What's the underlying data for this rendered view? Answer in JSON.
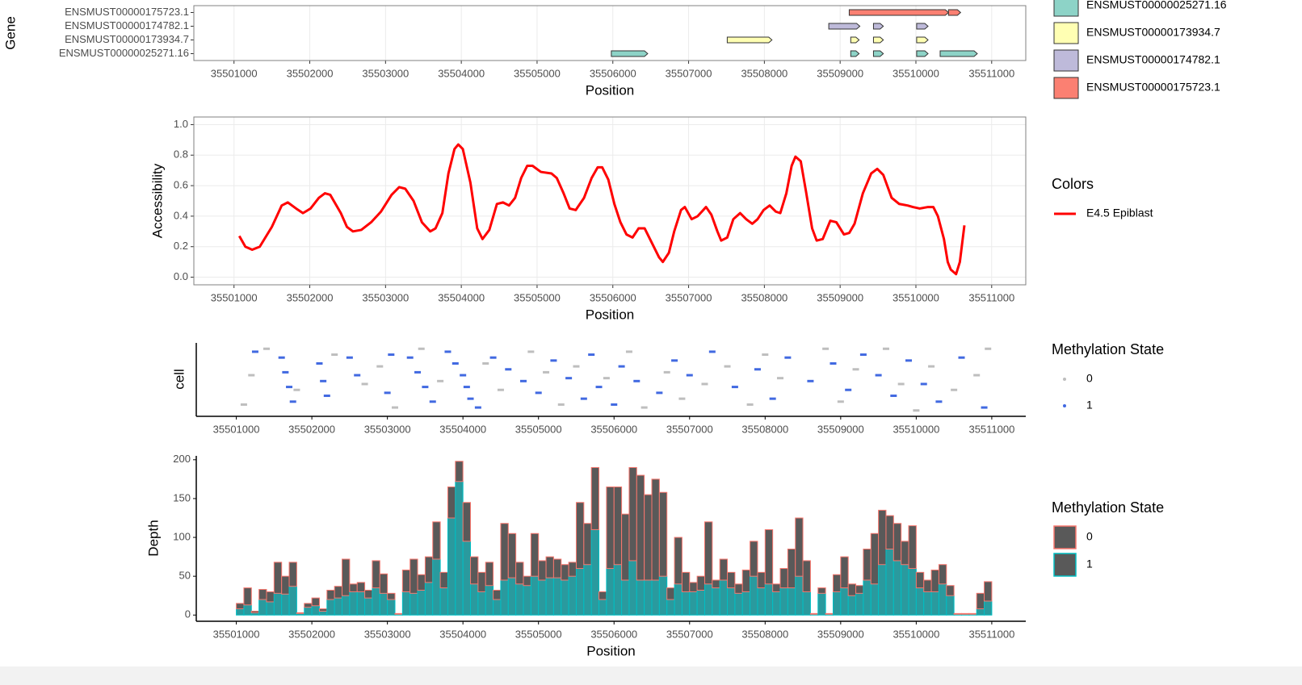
{
  "chart_data": [
    {
      "type": "gantt",
      "xlabel": "Position",
      "ylabel": "Gene",
      "categories": [
        "ENSMUST00000175723.1",
        "ENSMUST00000174782.1",
        "ENSMUST00000173934.7",
        "ENSMUST00000025271.16"
      ],
      "series": [
        {
          "name": "ENSMUST00000025271.16",
          "color": "#8dd3c7",
          "segments": [
            [
              35505980,
              35506460
            ],
            [
              35509140,
              35509250
            ],
            [
              35509440,
              35509570
            ],
            [
              35510010,
              35510160
            ],
            [
              35510320,
              35510810
            ]
          ]
        },
        {
          "name": "ENSMUST00000173934.7",
          "color": "#ffffb3",
          "segments": [
            [
              35507510,
              35508100
            ],
            [
              35509140,
              35509250
            ],
            [
              35509440,
              35509570
            ],
            [
              35510010,
              35510160
            ]
          ]
        },
        {
          "name": "ENSMUST00000174782.1",
          "color": "#bebada",
          "segments": [
            [
              35508850,
              35509260
            ],
            [
              35509440,
              35509570
            ],
            [
              35510010,
              35510160
            ]
          ]
        },
        {
          "name": "ENSMUST00000175723.1",
          "color": "#fb8072",
          "segments": [
            [
              35509120,
              35510430
            ],
            [
              35510430,
              35510590
            ]
          ]
        }
      ],
      "xlim": [
        35500470,
        35511450
      ],
      "xticks": [
        35501000,
        35502000,
        35503000,
        35504000,
        35505000,
        35506000,
        35507000,
        35508000,
        35509000,
        35510000,
        35511000
      ],
      "grid": true
    },
    {
      "type": "line",
      "xlabel": "Position",
      "ylabel": "Accessibility",
      "legend_title": "Colors",
      "x": [
        35501070,
        35501150,
        35501240,
        35501340,
        35501500,
        35501630,
        35501710,
        35501820,
        35501910,
        35502010,
        35502120,
        35502200,
        35502270,
        35502410,
        35502490,
        35502570,
        35502680,
        35502810,
        35502940,
        35503080,
        35503180,
        35503260,
        35503370,
        35503480,
        35503590,
        35503660,
        35503750,
        35503830,
        35503910,
        35503960,
        35504020,
        35504120,
        35504210,
        35504280,
        35504370,
        35504470,
        35504550,
        35504630,
        35504710,
        35504790,
        35504870,
        35504940,
        35505050,
        35505190,
        35505260,
        35505350,
        35505430,
        35505510,
        35505620,
        35505720,
        35505800,
        35505860,
        35505940,
        35506020,
        35506100,
        35506180,
        35506260,
        35506340,
        35506420,
        35506520,
        35506610,
        35506660,
        35506740,
        35506810,
        35506900,
        35506950,
        35507040,
        35507120,
        35507230,
        35507300,
        35507380,
        35507430,
        35507510,
        35507590,
        35507680,
        35507760,
        35507840,
        35507910,
        35507990,
        35508070,
        35508150,
        35508210,
        35508290,
        35508360,
        35508410,
        35508480,
        35508550,
        35508630,
        35508690,
        35508770,
        35508870,
        35508950,
        35509050,
        35509120,
        35509190,
        35509300,
        35509410,
        35509490,
        35509570,
        35509680,
        35509780,
        35509890,
        35509960,
        35510050,
        35510160,
        35510230,
        35510290,
        35510370,
        35510420,
        35510460,
        35510530,
        35510580,
        35510640
      ],
      "series": [
        {
          "name": "E4.5 Epiblast",
          "color": "#ff0000",
          "values": [
            0.27,
            0.2,
            0.18,
            0.2,
            0.33,
            0.47,
            0.49,
            0.45,
            0.42,
            0.45,
            0.52,
            0.55,
            0.54,
            0.42,
            0.33,
            0.3,
            0.31,
            0.36,
            0.43,
            0.54,
            0.59,
            0.58,
            0.5,
            0.36,
            0.3,
            0.32,
            0.42,
            0.68,
            0.84,
            0.87,
            0.84,
            0.62,
            0.32,
            0.25,
            0.31,
            0.48,
            0.49,
            0.47,
            0.52,
            0.65,
            0.73,
            0.73,
            0.69,
            0.68,
            0.65,
            0.55,
            0.45,
            0.44,
            0.52,
            0.65,
            0.72,
            0.72,
            0.64,
            0.48,
            0.36,
            0.28,
            0.26,
            0.32,
            0.32,
            0.22,
            0.13,
            0.1,
            0.16,
            0.3,
            0.44,
            0.46,
            0.38,
            0.4,
            0.46,
            0.41,
            0.3,
            0.24,
            0.26,
            0.38,
            0.42,
            0.38,
            0.35,
            0.38,
            0.44,
            0.47,
            0.43,
            0.42,
            0.55,
            0.73,
            0.79,
            0.76,
            0.56,
            0.32,
            0.24,
            0.25,
            0.37,
            0.36,
            0.28,
            0.29,
            0.35,
            0.55,
            0.68,
            0.71,
            0.67,
            0.52,
            0.48,
            0.47,
            0.46,
            0.45,
            0.46,
            0.46,
            0.4,
            0.25,
            0.1,
            0.05,
            0.02,
            0.1,
            0.34
          ]
        }
      ],
      "xlim": [
        35500470,
        35511450
      ],
      "xticks": [
        35501000,
        35502000,
        35503000,
        35504000,
        35505000,
        35506000,
        35507000,
        35508000,
        35509000,
        35510000,
        35511000
      ],
      "ylim": [
        -0.05,
        1.05
      ],
      "yticks": [
        {
          "value": 0,
          "label": "0.0"
        },
        0.2,
        0.4,
        0.6,
        0.8,
        {
          "value": 1,
          "label": "1.0"
        }
      ],
      "grid": true
    },
    {
      "type": "scatter",
      "ylabel": "cell",
      "legend_title": "Methylation State",
      "series": [
        {
          "name": "0",
          "color": "#bebebe",
          "x": [
            35501100,
            35501200,
            35501400,
            35501800,
            35502300,
            35502700,
            35502900,
            35503100,
            35503450,
            35503700,
            35504300,
            35504500,
            35504900,
            35505100,
            35505300,
            35505500,
            35505900,
            35506200,
            35506400,
            35506700,
            35506900,
            35507200,
            35507500,
            35507800,
            35508000,
            35508200,
            35508800,
            35509000,
            35509200,
            35509600,
            35509800,
            35510000,
            35510200,
            35510500,
            35510800,
            35510950
          ],
          "values": [
            4,
            14,
            23,
            9,
            21,
            11,
            17,
            3,
            23,
            12,
            18,
            9,
            22,
            15,
            4,
            17,
            13,
            22,
            3,
            15,
            6,
            11,
            17,
            4,
            21,
            13,
            23,
            5,
            16,
            23,
            11,
            2,
            17,
            9,
            14,
            23
          ]
        },
        {
          "name": "1",
          "color": "#4169e1",
          "x": [
            35501250,
            35501600,
            35501650,
            35501700,
            35501750,
            35502100,
            35502150,
            35502200,
            35502500,
            35502600,
            35503000,
            35503050,
            35503300,
            35503400,
            35503500,
            35503600,
            35503800,
            35503900,
            35504000,
            35504050,
            35504100,
            35504200,
            35504400,
            35504600,
            35504800,
            35505000,
            35505200,
            35505400,
            35505600,
            35505700,
            35505800,
            35506000,
            35506100,
            35506300,
            35506600,
            35506800,
            35507000,
            35507300,
            35507600,
            35507900,
            35508100,
            35508300,
            35508600,
            35508900,
            35509100,
            35509300,
            35509500,
            35509700,
            35509900,
            35510100,
            35510300,
            35510600,
            35510900
          ],
          "values": [
            22,
            20,
            15,
            10,
            5,
            18,
            12,
            7,
            20,
            14,
            8,
            21,
            20,
            15,
            10,
            5,
            22,
            18,
            14,
            10,
            6,
            3,
            20,
            16,
            12,
            8,
            19,
            13,
            6,
            21,
            10,
            4,
            17,
            12,
            8,
            19,
            14,
            22,
            10,
            16,
            6,
            20,
            12,
            18,
            9,
            21,
            14,
            7,
            19,
            11,
            5,
            20,
            3
          ]
        }
      ],
      "xlim": [
        35500470,
        35511450
      ],
      "xticks": [
        35501000,
        35502000,
        35503000,
        35504000,
        35505000,
        35506000,
        35507000,
        35508000,
        35509000,
        35510000,
        35511000
      ],
      "ylim": [
        0,
        25
      ]
    },
    {
      "type": "histogram",
      "xlabel": "Position",
      "ylabel": "Depth",
      "legend_title": "Methylation State",
      "bins": [
        35501000,
        35501100,
        35501200,
        35501300,
        35501400,
        35501500,
        35501600,
        35501700,
        35501800,
        35501900,
        35502000,
        35502100,
        35502200,
        35502300,
        35502400,
        35502500,
        35502600,
        35502700,
        35502800,
        35502900,
        35503000,
        35503100,
        35503200,
        35503300,
        35503400,
        35503500,
        35503600,
        35503700,
        35503800,
        35503900,
        35504000,
        35504100,
        35504200,
        35504300,
        35504400,
        35504500,
        35504600,
        35504700,
        35504800,
        35504900,
        35505000,
        35505100,
        35505200,
        35505300,
        35505400,
        35505500,
        35505600,
        35505700,
        35505800,
        35505900,
        35506000,
        35506100,
        35506200,
        35506300,
        35506400,
        35506500,
        35506600,
        35506700,
        35506800,
        35506900,
        35507000,
        35507100,
        35507200,
        35507300,
        35507400,
        35507500,
        35507600,
        35507700,
        35507800,
        35507900,
        35508000,
        35508100,
        35508200,
        35508300,
        35508400,
        35508500,
        35508600,
        35508700,
        35508800,
        35508900,
        35509000,
        35509100,
        35509200,
        35509300,
        35509400,
        35509500,
        35509600,
        35509700,
        35509800,
        35509900,
        35510000,
        35510100,
        35510200,
        35510300,
        35510400,
        35510500,
        35510600,
        35510700,
        35510800,
        35510900,
        35511000
      ],
      "series": [
        {
          "name": "0",
          "color": "#f8766d",
          "fill": "#595959",
          "values": [
            7,
            22,
            2,
            13,
            13,
            40,
            23,
            31,
            1,
            5,
            10,
            3,
            12,
            15,
            47,
            10,
            12,
            10,
            35,
            25,
            8,
            1,
            28,
            44,
            20,
            33,
            48,
            20,
            40,
            26,
            50,
            35,
            25,
            30,
            12,
            73,
            57,
            28,
            12,
            55,
            25,
            27,
            24,
            20,
            18,
            85,
            53,
            80,
            10,
            105,
            100,
            85,
            120,
            135,
            110,
            130,
            108,
            15,
            60,
            25,
            12,
            18,
            80,
            10,
            27,
            20,
            12,
            28,
            45,
            20,
            70,
            10,
            25,
            50,
            75,
            40,
            1,
            7,
            1,
            22,
            40,
            15,
            10,
            40,
            65,
            70,
            43,
            48,
            30,
            55,
            20,
            15,
            28,
            25,
            13,
            1,
            1,
            1,
            20,
            25
          ]
        },
        {
          "name": "1",
          "color": "#00bfc4",
          "fill": "#2a9a9e",
          "values": [
            8,
            13,
            3,
            20,
            17,
            28,
            27,
            37,
            2,
            10,
            12,
            5,
            20,
            22,
            25,
            30,
            30,
            22,
            35,
            28,
            20,
            1,
            30,
            28,
            32,
            42,
            72,
            35,
            125,
            172,
            95,
            40,
            30,
            38,
            20,
            45,
            48,
            40,
            38,
            50,
            45,
            48,
            48,
            45,
            50,
            60,
            65,
            110,
            20,
            60,
            65,
            45,
            70,
            45,
            45,
            45,
            50,
            20,
            40,
            30,
            30,
            32,
            40,
            35,
            45,
            35,
            28,
            30,
            50,
            35,
            40,
            30,
            35,
            35,
            50,
            30,
            1,
            28,
            1,
            30,
            35,
            25,
            28,
            45,
            40,
            65,
            85,
            70,
            65,
            60,
            35,
            30,
            30,
            40,
            25,
            1,
            1,
            1,
            8,
            18
          ]
        }
      ],
      "xlim": [
        35500470,
        35511450
      ],
      "xticks": [
        35501000,
        35502000,
        35503000,
        35504000,
        35505000,
        35506000,
        35507000,
        35508000,
        35509000,
        35510000,
        35511000
      ],
      "ylim": [
        -8,
        205
      ],
      "yticks": [
        0,
        50,
        100,
        150,
        200
      ]
    }
  ]
}
